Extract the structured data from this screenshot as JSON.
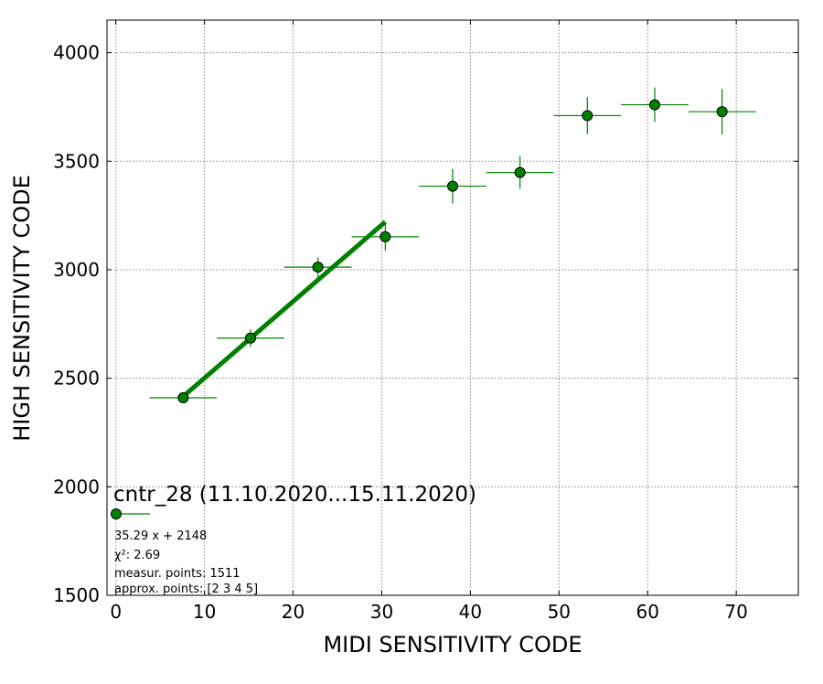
{
  "chart_data": {
    "type": "scatter",
    "title": "",
    "xlabel": "MIDI SENSITIVITY CODE",
    "ylabel": "HIGH SENSITIVITY CODE",
    "xlim": [
      -1,
      77
    ],
    "ylim": [
      1500,
      4150
    ],
    "xticks": [
      0,
      10,
      20,
      30,
      40,
      50,
      60,
      70
    ],
    "yticks": [
      1500,
      2000,
      2500,
      3000,
      3500,
      4000
    ],
    "grid": true,
    "series": [
      {
        "color": "#008000",
        "marker": "circle",
        "points": [
          {
            "x": 7.6,
            "y": 2410,
            "xerr": 3.8,
            "yerr": 0
          },
          {
            "x": 15.2,
            "y": 2685,
            "xerr": 3.8,
            "yerr": 40
          },
          {
            "x": 22.8,
            "y": 3012,
            "xerr": 3.8,
            "yerr": 45
          },
          {
            "x": 30.4,
            "y": 3152,
            "xerr": 3.8,
            "yerr": 65
          },
          {
            "x": 38.0,
            "y": 3385,
            "xerr": 3.8,
            "yerr": 80
          },
          {
            "x": 45.6,
            "y": 3448,
            "xerr": 3.8,
            "yerr": 75
          },
          {
            "x": 53.2,
            "y": 3710,
            "xerr": 3.8,
            "yerr": 85
          },
          {
            "x": 60.8,
            "y": 3760,
            "xerr": 3.8,
            "yerr": 80
          },
          {
            "x": 68.4,
            "y": 3728,
            "xerr": 3.8,
            "yerr": 105
          }
        ]
      }
    ],
    "fit": {
      "slope": 35.29,
      "intercept": 2148,
      "x_range": [
        7.6,
        30.4
      ],
      "color": "#008000"
    },
    "legend": {
      "placement": "bottom-left",
      "title": "cntr_28 (11.10.2020...15.11.2020)",
      "lines": [
        "35.29 x + 2148",
        "χ²: 2.69",
        "measur. points: 1511",
        "approx. points: [2 3 4 5]"
      ]
    }
  }
}
